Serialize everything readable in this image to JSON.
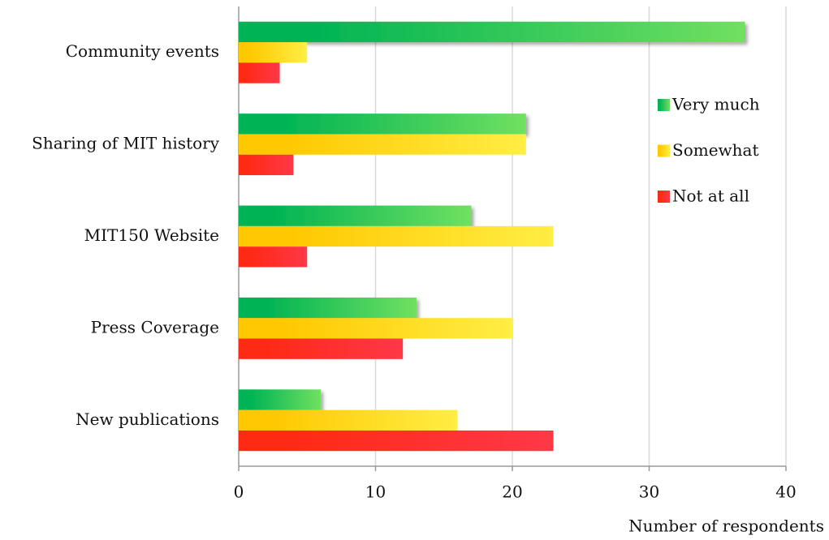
{
  "chart_data": {
    "type": "bar",
    "orientation": "horizontal",
    "categories": [
      "Community events",
      "Sharing of MIT history",
      "MIT150 Website",
      "Press Coverage",
      "New publications"
    ],
    "series": [
      {
        "name": "Very much",
        "color": "#00b454",
        "values": [
          37,
          21,
          17,
          13,
          6
        ]
      },
      {
        "name": "Somewhat",
        "color": "#ffc800",
        "values": [
          5,
          21,
          23,
          20,
          16
        ]
      },
      {
        "name": "Not at all",
        "color": "#ff2a14",
        "values": [
          3,
          4,
          5,
          12,
          23
        ]
      }
    ],
    "xlabel": "Number of respondents",
    "xlim": [
      0,
      40
    ],
    "xticks": [
      0,
      10,
      20,
      30,
      40
    ],
    "grid": true,
    "legend": "right"
  }
}
